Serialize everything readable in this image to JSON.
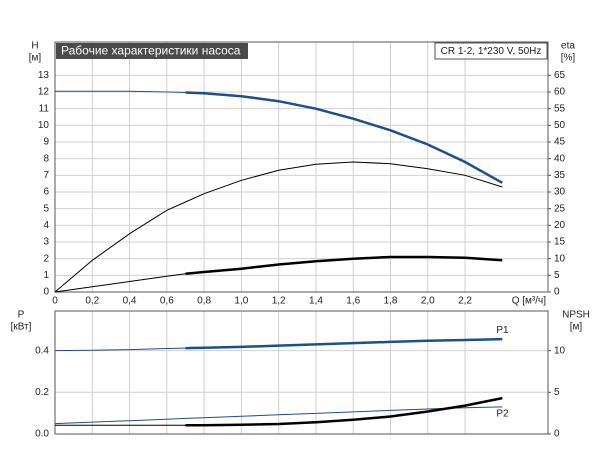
{
  "chart_data": [
    {
      "type": "line",
      "title": "Рабочие характеристики насоса",
      "annotation": "CR 1-2, 1*230 V, 50Hz",
      "y_label": "H",
      "y_unit": "[м]",
      "y2_label": "eta",
      "y2_unit": "[%]",
      "x_label": "Q [м³/ч]",
      "x": [
        0,
        0.2,
        0.4,
        0.6,
        0.7,
        0.8,
        1.0,
        1.2,
        1.4,
        1.6,
        1.8,
        2.0,
        2.2,
        2.4
      ],
      "xlim": [
        0,
        2.645
      ],
      "xticks": [
        {
          "value": 0,
          "label": "0"
        },
        {
          "value": 0.2,
          "label": "0,2"
        },
        {
          "value": 0.4,
          "label": "0,4"
        },
        {
          "value": 0.6,
          "label": "0,6"
        },
        {
          "value": 0.8,
          "label": "0,8"
        },
        {
          "value": 1.0,
          "label": "1,0"
        },
        {
          "value": 1.2,
          "label": "1,2"
        },
        {
          "value": 1.4,
          "label": "1,4"
        },
        {
          "value": 1.6,
          "label": "1,6"
        },
        {
          "value": 1.8,
          "label": "1,8"
        },
        {
          "value": 2.0,
          "label": "2,0"
        },
        {
          "value": 2.2,
          "label": "2,2"
        }
      ],
      "ylim": [
        0,
        15
      ],
      "yticks": [
        0,
        1,
        2,
        3,
        4,
        5,
        6,
        7,
        8,
        9,
        10,
        11,
        12,
        13
      ],
      "y2lim": [
        0,
        75
      ],
      "y2ticks": [
        0,
        5,
        10,
        15,
        20,
        25,
        30,
        35,
        40,
        45,
        50,
        55,
        60,
        65
      ],
      "grid": true,
      "series": [
        {
          "color": "#1f4e8c",
          "width": 1,
          "values": [
            12.05,
            12.05,
            12.04,
            12.0,
            11.97,
            null,
            null,
            null,
            null,
            null,
            null,
            null,
            null,
            null
          ]
        },
        {
          "color": "#1f4e8c",
          "width": 2.5,
          "values": [
            null,
            null,
            null,
            null,
            11.97,
            11.92,
            11.75,
            11.45,
            11.0,
            10.4,
            9.7,
            8.85,
            7.8,
            6.55
          ]
        },
        {
          "color": "#000000",
          "width": 1,
          "axis": "y2",
          "values": [
            0,
            9.5,
            17.5,
            24.5,
            27,
            29.5,
            33.5,
            36.5,
            38.3,
            39,
            38.5,
            37,
            35,
            31.5
          ]
        },
        {
          "color": "#000000",
          "width": 1,
          "axis": "y2",
          "values": [
            0,
            1.6,
            3.15,
            4.75,
            5.5,
            null,
            null,
            null,
            null,
            null,
            null,
            null,
            null,
            null
          ]
        },
        {
          "color": "#000000",
          "width": 2.5,
          "axis": "y2",
          "values": [
            null,
            null,
            null,
            null,
            5.5,
            6,
            7,
            8.25,
            9.25,
            10,
            10.5,
            10.5,
            10.25,
            9.5
          ]
        }
      ]
    },
    {
      "type": "line",
      "y_label": "P",
      "y_unit": "[кВт]",
      "y2_label": "NPSH",
      "y2_unit": "[м]",
      "x": [
        0,
        0.2,
        0.4,
        0.6,
        0.7,
        0.8,
        1.0,
        1.2,
        1.4,
        1.6,
        1.8,
        2.0,
        2.2,
        2.4
      ],
      "xlim": [
        0,
        2.645
      ],
      "ylim": [
        0,
        0.59
      ],
      "yticks": [
        {
          "value": 0,
          "label": "0.0"
        },
        {
          "value": 0.2,
          "label": "0.2"
        },
        {
          "value": 0.4,
          "label": "0.4"
        }
      ],
      "y2lim": [
        0,
        14.75
      ],
      "y2ticks": [
        0,
        5,
        10
      ],
      "grid": true,
      "series": [
        {
          "color": "#1f4e8c",
          "width": 1,
          "values": [
            0.4,
            0.402,
            0.405,
            0.41,
            0.412,
            null,
            null,
            null,
            null,
            null,
            null,
            null,
            null,
            null
          ]
        },
        {
          "color": "#1f4e8c",
          "width": 2.5,
          "label": "P1",
          "values": [
            null,
            null,
            null,
            null,
            0.412,
            0.414,
            0.418,
            0.424,
            0.43,
            0.436,
            0.442,
            0.447,
            0.451,
            0.455
          ]
        },
        {
          "color": "#1f4e8c",
          "width": 1,
          "label": "P2",
          "values": [
            0.05,
            0.057,
            0.064,
            0.071,
            0.075,
            0.078,
            0.085,
            0.092,
            0.099,
            0.106,
            0.113,
            0.12,
            0.126,
            0.13
          ]
        },
        {
          "color": "#000000",
          "width": 1,
          "axis": "y2",
          "values": [
            1.05,
            1.05,
            1.05,
            1.05,
            1.05,
            null,
            null,
            null,
            null,
            null,
            null,
            null,
            null,
            null
          ]
        },
        {
          "color": "#000000",
          "width": 2.5,
          "axis": "y2",
          "values": [
            null,
            null,
            null,
            null,
            1.05,
            1.06,
            1.1,
            1.2,
            1.4,
            1.7,
            2.1,
            2.7,
            3.4,
            4.3
          ]
        }
      ]
    }
  ]
}
